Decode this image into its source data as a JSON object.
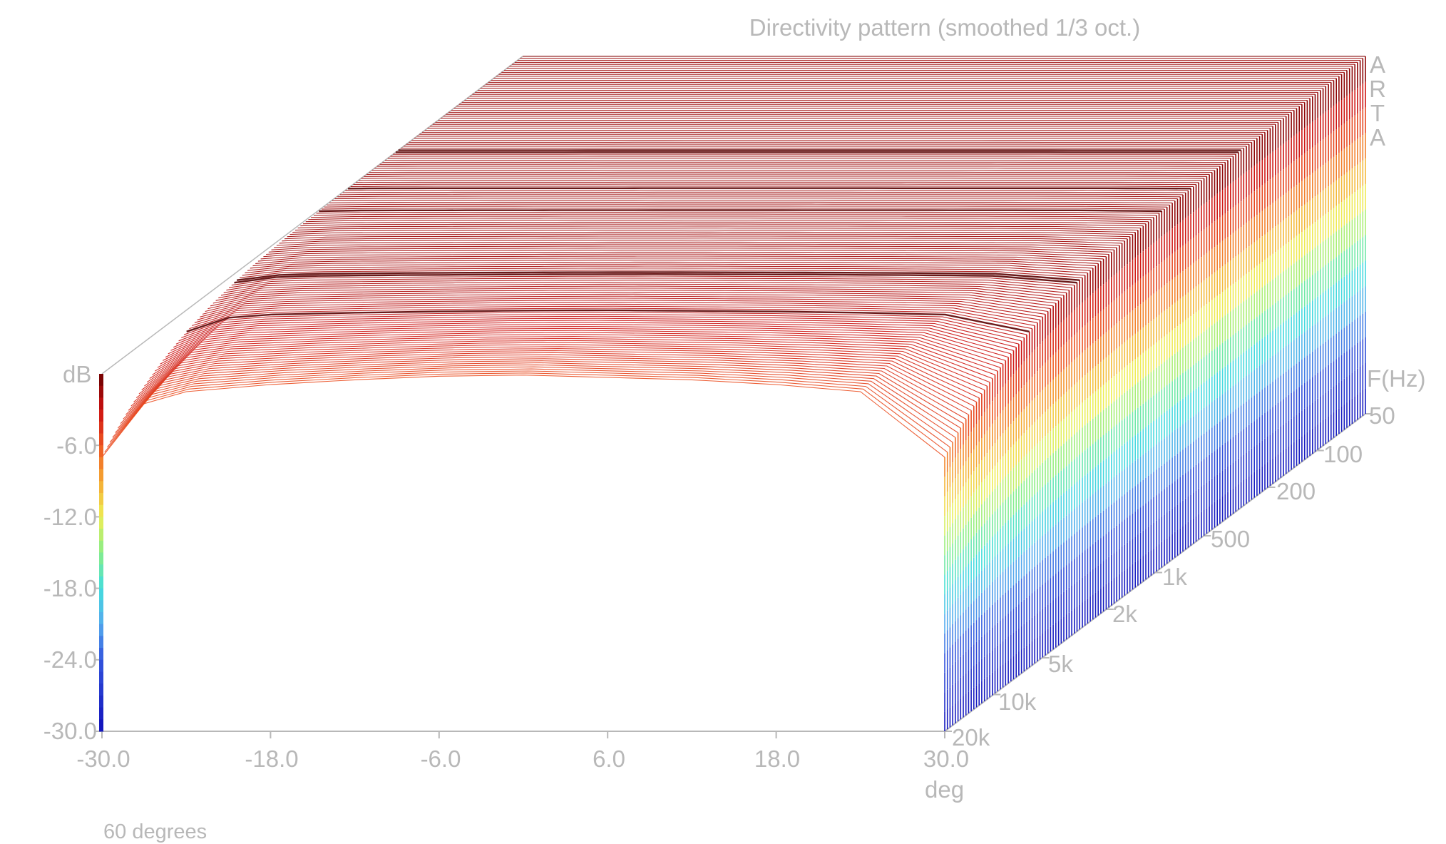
{
  "chart_data": {
    "type": "waterfall-3d",
    "title": "Directivity pattern (smoothed 1/3 oct.)",
    "ylabel": "dB",
    "xlabel": "deg",
    "zlabel": "F(Hz)",
    "brand_letters": [
      "A",
      "R",
      "T",
      "A"
    ],
    "note": "60 degrees",
    "x_ticks": [
      "-30.0",
      "-18.0",
      "-6.0",
      "6.0",
      "18.0",
      "30.0"
    ],
    "y_ticks": [
      "-6.0",
      "-12.0",
      "-18.0",
      "-24.0",
      "-30.0"
    ],
    "z_ticks": [
      "50",
      "100",
      "200",
      "500",
      "1k",
      "2k",
      "5k",
      "10k",
      "20k"
    ],
    "xlim": [
      -30,
      30
    ],
    "ylim": [
      -30,
      0
    ],
    "zlim_hz": [
      50,
      20000
    ],
    "z_scale": "log",
    "colormap_db": [
      {
        "db": 0,
        "color": "#6b0000"
      },
      {
        "db": -3,
        "color": "#cc1111"
      },
      {
        "db": -6,
        "color": "#ee5522"
      },
      {
        "db": -9,
        "color": "#f5aa33"
      },
      {
        "db": -12,
        "color": "#eeee55"
      },
      {
        "db": -15,
        "color": "#88ee88"
      },
      {
        "db": -18,
        "color": "#44dddd"
      },
      {
        "db": -21,
        "color": "#55aaee"
      },
      {
        "db": -24,
        "color": "#3355dd"
      },
      {
        "db": -30,
        "color": "#1111bb"
      }
    ],
    "angle_profile": {
      "deg": [
        -30,
        -27,
        -24,
        -18,
        -12,
        -6,
        0,
        6,
        12,
        18,
        24,
        30
      ],
      "front_db": [
        -7.0,
        -2.5,
        -1.5,
        -0.9,
        -0.5,
        -0.2,
        -0.1,
        -0.3,
        -0.5,
        -0.9,
        -1.5,
        -7.0
      ],
      "back_db": [
        0,
        0,
        0,
        0,
        0,
        0,
        0,
        0,
        0,
        0,
        0,
        0
      ]
    },
    "dark_band_freqs_hz": [
      300,
      600,
      900,
      3000,
      6000
    ],
    "grid": false
  }
}
